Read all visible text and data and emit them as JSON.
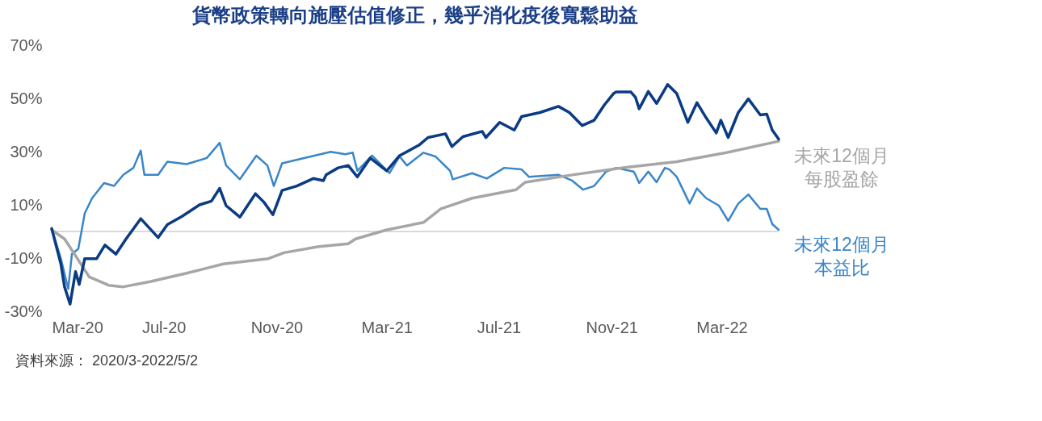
{
  "chart_data": {
    "type": "line",
    "title": "貨幣政策轉向施壓估值修正，幾乎消化疫後寬鬆助益",
    "xlim": [
      "2020-03-01",
      "2022-05-02"
    ],
    "xticks": [
      {
        "value": "2020-03-01",
        "label": "Mar-20"
      },
      {
        "value": "2020-07-01",
        "label": "Jul-20"
      },
      {
        "value": "2020-11-01",
        "label": "Nov-20"
      },
      {
        "value": "2021-03-01",
        "label": "Mar-21"
      },
      {
        "value": "2021-07-01",
        "label": "Jul-21"
      },
      {
        "value": "2021-11-01",
        "label": "Nov-21"
      },
      {
        "value": "2022-03-01",
        "label": "Mar-22"
      }
    ],
    "ylim": [
      -30,
      70
    ],
    "yticks": [
      {
        "value": -30,
        "label": "-30%"
      },
      {
        "value": -10,
        "label": "-10%"
      },
      {
        "value": 10,
        "label": "10%"
      },
      {
        "value": 30,
        "label": "30%"
      },
      {
        "value": 50,
        "label": "50%"
      },
      {
        "value": 70,
        "label": "70%"
      }
    ],
    "ref_lines": [
      {
        "axis": "y",
        "value": 0,
        "color": "#d9d9d9"
      }
    ],
    "annotations": [
      "資料來源： 2020/3-2022/5/2"
    ],
    "series": [
      {
        "color": "#0b3b82",
        "x": [
          "2020-03-01",
          "2020-03-11",
          "2020-03-15",
          "2020-03-21",
          "2020-03-27",
          "2020-03-31",
          "2020-04-06",
          "2020-04-19",
          "2020-04-28",
          "2020-05-10",
          "2020-05-21",
          "2020-06-06",
          "2020-06-25",
          "2020-07-05",
          "2020-07-21",
          "2020-08-09",
          "2020-08-22",
          "2020-08-31",
          "2020-09-07",
          "2020-09-22",
          "2020-10-09",
          "2020-10-18",
          "2020-10-28",
          "2020-11-07",
          "2020-11-23",
          "2020-12-11",
          "2020-12-22",
          "2020-12-25",
          "2021-01-07",
          "2021-01-18",
          "2021-01-28",
          "2021-02-11",
          "2021-03-01",
          "2021-03-15",
          "2021-04-05",
          "2021-04-15",
          "2021-05-04",
          "2021-05-11",
          "2021-05-23",
          "2021-06-13",
          "2021-06-17",
          "2021-07-02",
          "2021-07-18",
          "2021-07-26",
          "2021-08-15",
          "2021-09-04",
          "2021-09-16",
          "2021-09-30",
          "2021-10-13",
          "2021-10-24",
          "2021-11-03",
          "2021-11-06",
          "2021-11-22",
          "2021-11-27",
          "2021-12-01",
          "2021-12-11",
          "2021-12-20",
          "2022-01-01",
          "2022-01-11",
          "2022-01-23",
          "2022-02-02",
          "2022-02-12",
          "2022-02-23",
          "2022-02-28",
          "2022-03-08",
          "2022-03-19",
          "2022-03-30",
          "2022-04-12",
          "2022-04-19",
          "2022-04-25",
          "2022-05-02"
        ],
        "values": [
          1.1,
          -12.2,
          -20.8,
          -27.3,
          -15.1,
          -19.9,
          -10.2,
          -10.2,
          -5.1,
          -8.5,
          -2.8,
          4.8,
          -2.3,
          2.6,
          5.7,
          10.0,
          11.4,
          16.2,
          9.7,
          5.4,
          14.2,
          11.1,
          6.3,
          15.4,
          17.1,
          19.9,
          19.1,
          21.3,
          23.9,
          24.8,
          20.5,
          27.6,
          22.8,
          28.5,
          32.4,
          35.3,
          36.7,
          31.9,
          35.6,
          37.6,
          35.3,
          41.0,
          38.1,
          43.2,
          44.7,
          47.0,
          44.7,
          39.8,
          41.8,
          47.5,
          51.8,
          52.4,
          52.4,
          50.4,
          46.1,
          52.6,
          48.1,
          55.2,
          51.8,
          41.0,
          48.4,
          42.7,
          37.0,
          41.8,
          35.3,
          44.7,
          49.8,
          43.8,
          44.1,
          38.1,
          34.7
        ]
      },
      {
        "name": "未來12個月每股盈餘",
        "color": "#a6a6a6",
        "x": [
          "2020-03-01",
          "2020-03-15",
          "2020-03-29",
          "2020-04-11",
          "2020-05-02",
          "2020-05-18",
          "2020-06-17",
          "2020-07-26",
          "2020-09-04",
          "2020-10-23",
          "2020-11-09",
          "2020-12-17",
          "2021-01-18",
          "2021-01-26",
          "2021-03-01",
          "2021-04-10",
          "2021-04-29",
          "2021-06-02",
          "2021-07-20",
          "2021-07-30",
          "2021-09-16",
          "2021-11-19",
          "2022-01-11",
          "2022-03-06",
          "2022-05-02"
        ],
        "values": [
          0.6,
          -2.8,
          -10.2,
          -17.1,
          -20.2,
          -20.8,
          -18.8,
          -15.7,
          -12.2,
          -10.2,
          -8.0,
          -5.7,
          -4.6,
          -2.8,
          0.6,
          3.4,
          8.5,
          12.5,
          15.7,
          18.5,
          21.1,
          24.2,
          26.2,
          29.6,
          33.9
        ]
      },
      {
        "name": "未來12個月本益比",
        "color": "#3a86c8",
        "x": [
          "2020-03-01",
          "2020-03-11",
          "2020-03-19",
          "2020-03-23",
          "2020-03-30",
          "2020-04-06",
          "2020-04-14",
          "2020-04-27",
          "2020-05-08",
          "2020-05-18",
          "2020-05-29",
          "2020-06-06",
          "2020-06-10",
          "2020-06-25",
          "2020-07-05",
          "2020-07-26",
          "2020-08-17",
          "2020-08-31",
          "2020-09-07",
          "2020-09-22",
          "2020-10-10",
          "2020-10-22",
          "2020-10-29",
          "2020-11-07",
          "2020-12-01",
          "2020-12-30",
          "2021-01-15",
          "2021-01-23",
          "2021-01-28",
          "2021-02-13",
          "2021-03-04",
          "2021-03-15",
          "2021-03-23",
          "2021-04-10",
          "2021-04-23",
          "2021-05-09",
          "2021-05-12",
          "2021-06-02",
          "2021-06-18",
          "2021-07-07",
          "2021-07-26",
          "2021-08-03",
          "2021-09-04",
          "2021-09-19",
          "2021-10-01",
          "2021-10-13",
          "2021-10-26",
          "2021-11-06",
          "2021-11-25",
          "2021-11-27",
          "2021-12-01",
          "2021-12-11",
          "2021-12-20",
          "2021-12-29",
          "2022-01-03",
          "2022-01-11",
          "2022-01-25",
          "2022-02-02",
          "2022-02-12",
          "2022-02-26",
          "2022-03-08",
          "2022-03-19",
          "2022-03-30",
          "2022-04-12",
          "2022-04-19",
          "2022-04-25",
          "2022-05-02"
        ],
        "values": [
          1.1,
          -10.2,
          -21.6,
          -8.5,
          -6.5,
          6.8,
          12.5,
          18.2,
          17.1,
          21.3,
          23.9,
          30.4,
          21.3,
          21.3,
          26.2,
          25.3,
          27.6,
          33.3,
          24.8,
          19.6,
          28.5,
          24.8,
          17.1,
          25.6,
          27.6,
          29.9,
          29.0,
          29.6,
          22.8,
          28.5,
          21.9,
          28.2,
          24.8,
          29.6,
          28.2,
          22.8,
          19.6,
          21.9,
          19.9,
          23.9,
          23.3,
          20.5,
          21.3,
          19.1,
          15.7,
          17.1,
          22.5,
          23.9,
          22.5,
          21.3,
          18.2,
          22.5,
          18.5,
          23.9,
          23.3,
          20.5,
          10.5,
          16.2,
          12.5,
          9.7,
          4.0,
          10.5,
          13.9,
          8.5,
          8.5,
          2.8,
          0.6
        ]
      }
    ]
  }
}
